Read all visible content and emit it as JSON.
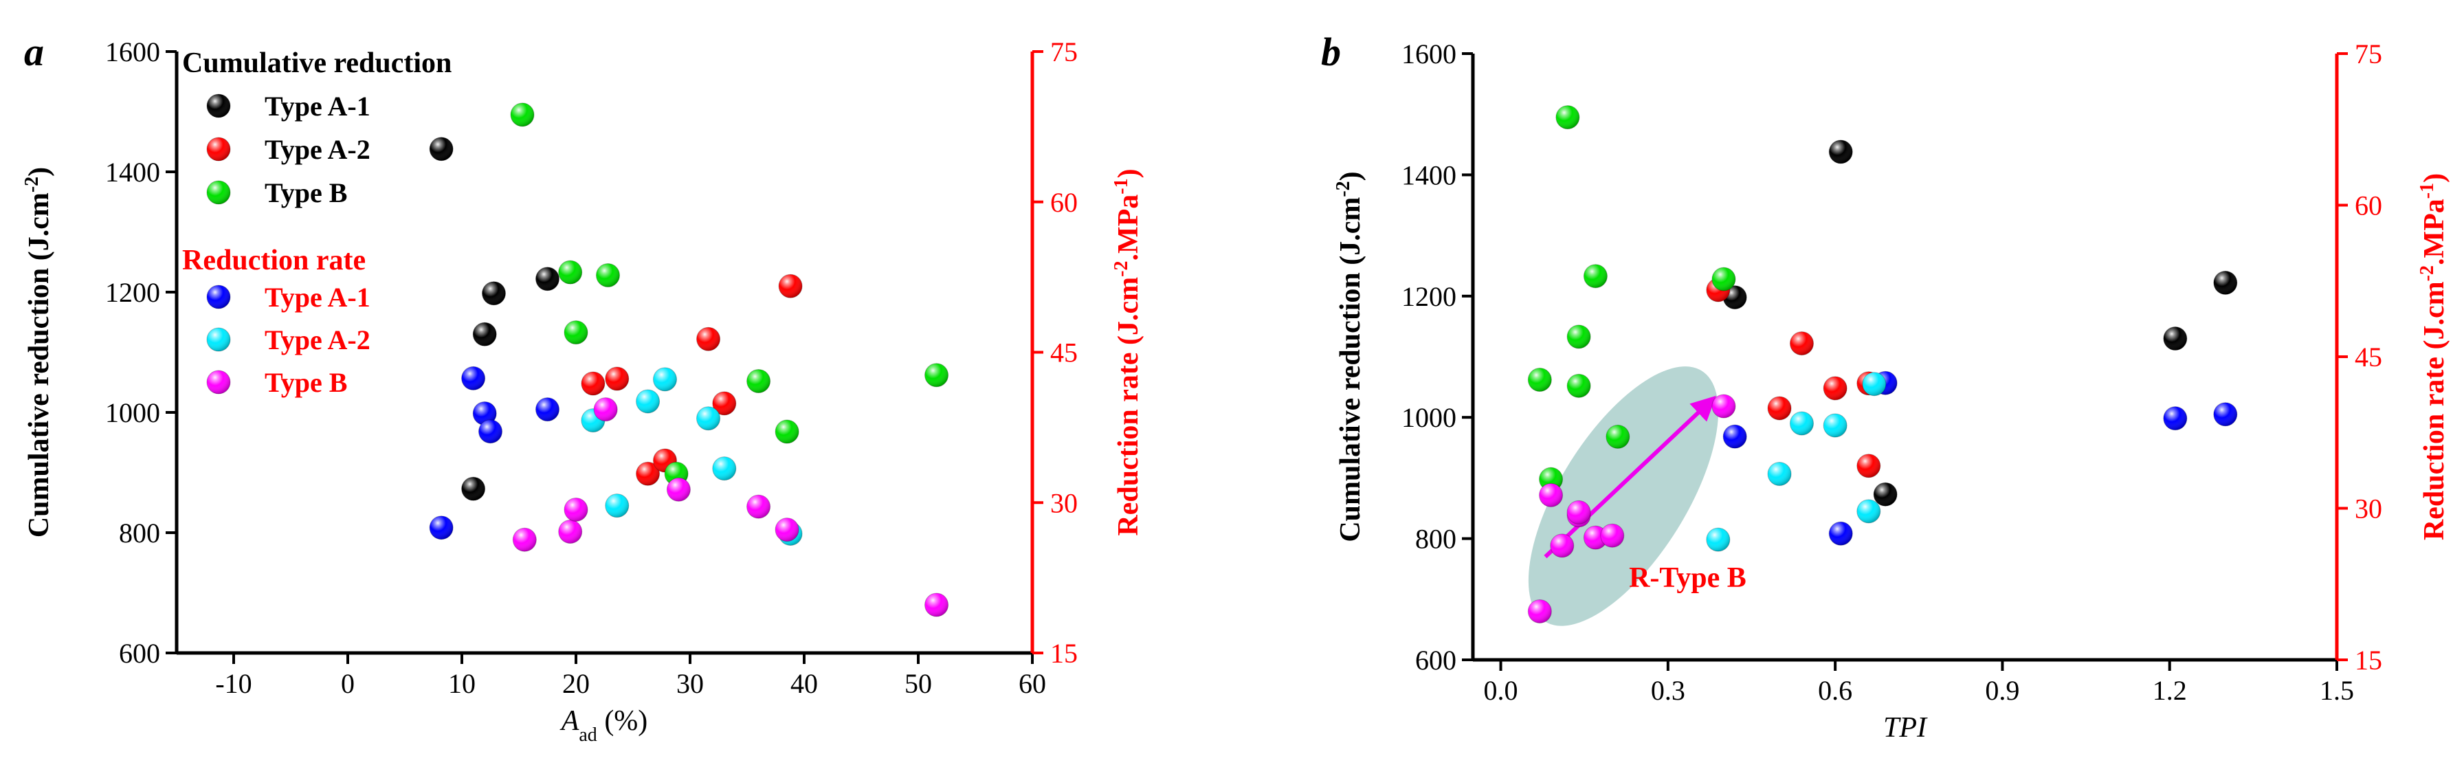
{
  "colors": {
    "axis_left": "#000000",
    "axis_right": "#ff0000",
    "type_a1_cum": "#000000",
    "type_a2_cum": "#ff0000",
    "type_b_cum": "#00e000",
    "type_a1_rate": "#0000ff",
    "type_a2_rate": "#00eaff",
    "type_b_rate": "#ff00ff",
    "ellipse": "#b7d6d3",
    "arrow": "#ee00ee",
    "rtype_label": "#ff0000"
  },
  "chart_data": [
    {
      "panel_label": "a",
      "type": "scatter",
      "xlabel_main": "A",
      "xlabel_sub": "ad",
      "xlabel_suffix": " (%)",
      "ylabel_left": "Cumulative reduction (J.cm",
      "ylabel_left_sup": "-2",
      "ylabel_left_end": ")",
      "ylabel_right": "Reduction rate (J.cm",
      "ylabel_right_sup1": "-2",
      "ylabel_right_mid": ".MPa",
      "ylabel_right_sup2": "-1",
      "ylabel_right_end": ")",
      "xlim": [
        -15,
        60
      ],
      "ylim_left": [
        600,
        1600
      ],
      "ylim_right": [
        15,
        75
      ],
      "xticks": [
        -10,
        0,
        10,
        20,
        30,
        40,
        50,
        60
      ],
      "yticks_left": [
        600,
        800,
        1000,
        1200,
        1400,
        1600
      ],
      "yticks_right": [
        15,
        30,
        45,
        60,
        75
      ],
      "legend": {
        "header1": "Cumulative reduction",
        "header2": "Reduction rate",
        "entries1": [
          "Type A-1",
          "Type A-2",
          "Type B"
        ],
        "entries2": [
          "Type A-1",
          "Type A-2",
          "Type B"
        ]
      },
      "series": [
        {
          "name": "Type A-1",
          "group": "cumulative",
          "color_key": "type_a1_cum",
          "axis": "left",
          "x": [
            8.2,
            11.0,
            12.0,
            12.8,
            17.5
          ],
          "y": [
            1438,
            873,
            1130,
            1198,
            1222
          ]
        },
        {
          "name": "Type A-2",
          "group": "cumulative",
          "color_key": "type_a2_cum",
          "axis": "left",
          "x": [
            21.5,
            23.6,
            26.3,
            27.8,
            31.6,
            33.0,
            38.8
          ],
          "y": [
            1048,
            1056,
            898,
            920,
            1122,
            1015,
            1210
          ]
        },
        {
          "name": "Type B",
          "group": "cumulative",
          "color_key": "type_b_cum",
          "axis": "left",
          "x": [
            15.3,
            19.5,
            20.0,
            22.8,
            28.8,
            36.0,
            38.5,
            51.6
          ],
          "y": [
            1495,
            1233,
            1133,
            1228,
            898,
            1052,
            968,
            1062
          ]
        },
        {
          "name": "Type A-1",
          "group": "rate",
          "color_key": "type_a1_rate",
          "axis": "right",
          "x": [
            8.2,
            11.0,
            12.0,
            12.5,
            17.5
          ],
          "y": [
            27.5,
            42.4,
            38.9,
            37.1,
            39.3
          ]
        },
        {
          "name": "Type A-2",
          "group": "rate",
          "color_key": "type_a2_rate",
          "axis": "right",
          "x": [
            21.5,
            23.6,
            26.3,
            27.8,
            31.6,
            33.0,
            38.8
          ],
          "y": [
            38.2,
            29.7,
            40.1,
            42.3,
            38.4,
            33.4,
            26.9
          ]
        },
        {
          "name": "Type B",
          "group": "rate",
          "color_key": "type_b_rate",
          "axis": "right",
          "x": [
            15.5,
            19.5,
            20.0,
            22.6,
            29.0,
            36.0,
            38.5,
            51.6
          ],
          "y": [
            26.3,
            27.1,
            29.3,
            39.3,
            31.3,
            29.6,
            27.3,
            19.8
          ]
        }
      ]
    },
    {
      "panel_label": "b",
      "type": "scatter",
      "xlabel_main": "TPI",
      "ylabel_left": "Cumulative reduction (J.cm",
      "ylabel_left_sup": "-2",
      "ylabel_left_end": ")",
      "ylabel_right": "Reduction rate (J.cm",
      "ylabel_right_sup1": "-2",
      "ylabel_right_mid": ".MPa",
      "ylabel_right_sup2": "-1",
      "ylabel_right_end": ")",
      "xlim": [
        -0.05,
        1.5
      ],
      "ylim_left": [
        600,
        1600
      ],
      "ylim_right": [
        15,
        75
      ],
      "xticks": [
        0.0,
        0.3,
        0.6,
        0.9,
        1.2,
        1.5
      ],
      "xtick_labels": [
        "0.0",
        "0.3",
        "0.6",
        "0.9",
        "1.2",
        "1.5"
      ],
      "yticks_left": [
        600,
        800,
        1000,
        1200,
        1400,
        1600
      ],
      "yticks_right": [
        15,
        30,
        45,
        60,
        75
      ],
      "annotation": "R-Type B",
      "series": [
        {
          "name": "Type A-1",
          "group": "cumulative",
          "color_key": "type_a1_cum",
          "axis": "left",
          "x": [
            0.42,
            0.61,
            0.69,
            1.21,
            1.3
          ],
          "y": [
            1198,
            1438,
            873,
            1130,
            1222
          ]
        },
        {
          "name": "Type A-2",
          "group": "cumulative",
          "color_key": "type_a2_cum",
          "axis": "left",
          "x": [
            0.39,
            0.5,
            0.54,
            0.6,
            0.66,
            0.66
          ],
          "y": [
            1210,
            1015,
            1122,
            1048,
            1056,
            920
          ]
        },
        {
          "name": "Type B",
          "group": "cumulative",
          "color_key": "type_b_cum",
          "axis": "left",
          "x": [
            0.07,
            0.09,
            0.12,
            0.14,
            0.14,
            0.17,
            0.21,
            0.4
          ],
          "y": [
            1062,
            898,
            1495,
            1133,
            1052,
            1233,
            968,
            1228
          ]
        },
        {
          "name": "Type A-1",
          "group": "rate",
          "color_key": "type_a1_rate",
          "axis": "right",
          "x": [
            0.42,
            0.61,
            0.69,
            1.21,
            1.3
          ],
          "y": [
            37.1,
            27.5,
            42.4,
            38.9,
            39.3
          ]
        },
        {
          "name": "Type A-2",
          "group": "rate",
          "color_key": "type_a2_rate",
          "axis": "right",
          "x": [
            0.39,
            0.5,
            0.54,
            0.6,
            0.66,
            0.67
          ],
          "y": [
            26.9,
            33.4,
            38.4,
            38.2,
            29.7,
            42.3
          ]
        },
        {
          "name": "Type B",
          "group": "rate",
          "color_key": "type_b_rate",
          "axis": "right",
          "x": [
            0.07,
            0.09,
            0.11,
            0.14,
            0.14,
            0.17,
            0.2,
            0.4
          ],
          "y": [
            19.8,
            31.3,
            26.3,
            29.3,
            29.6,
            27.1,
            27.3,
            40.1
          ]
        }
      ]
    }
  ]
}
